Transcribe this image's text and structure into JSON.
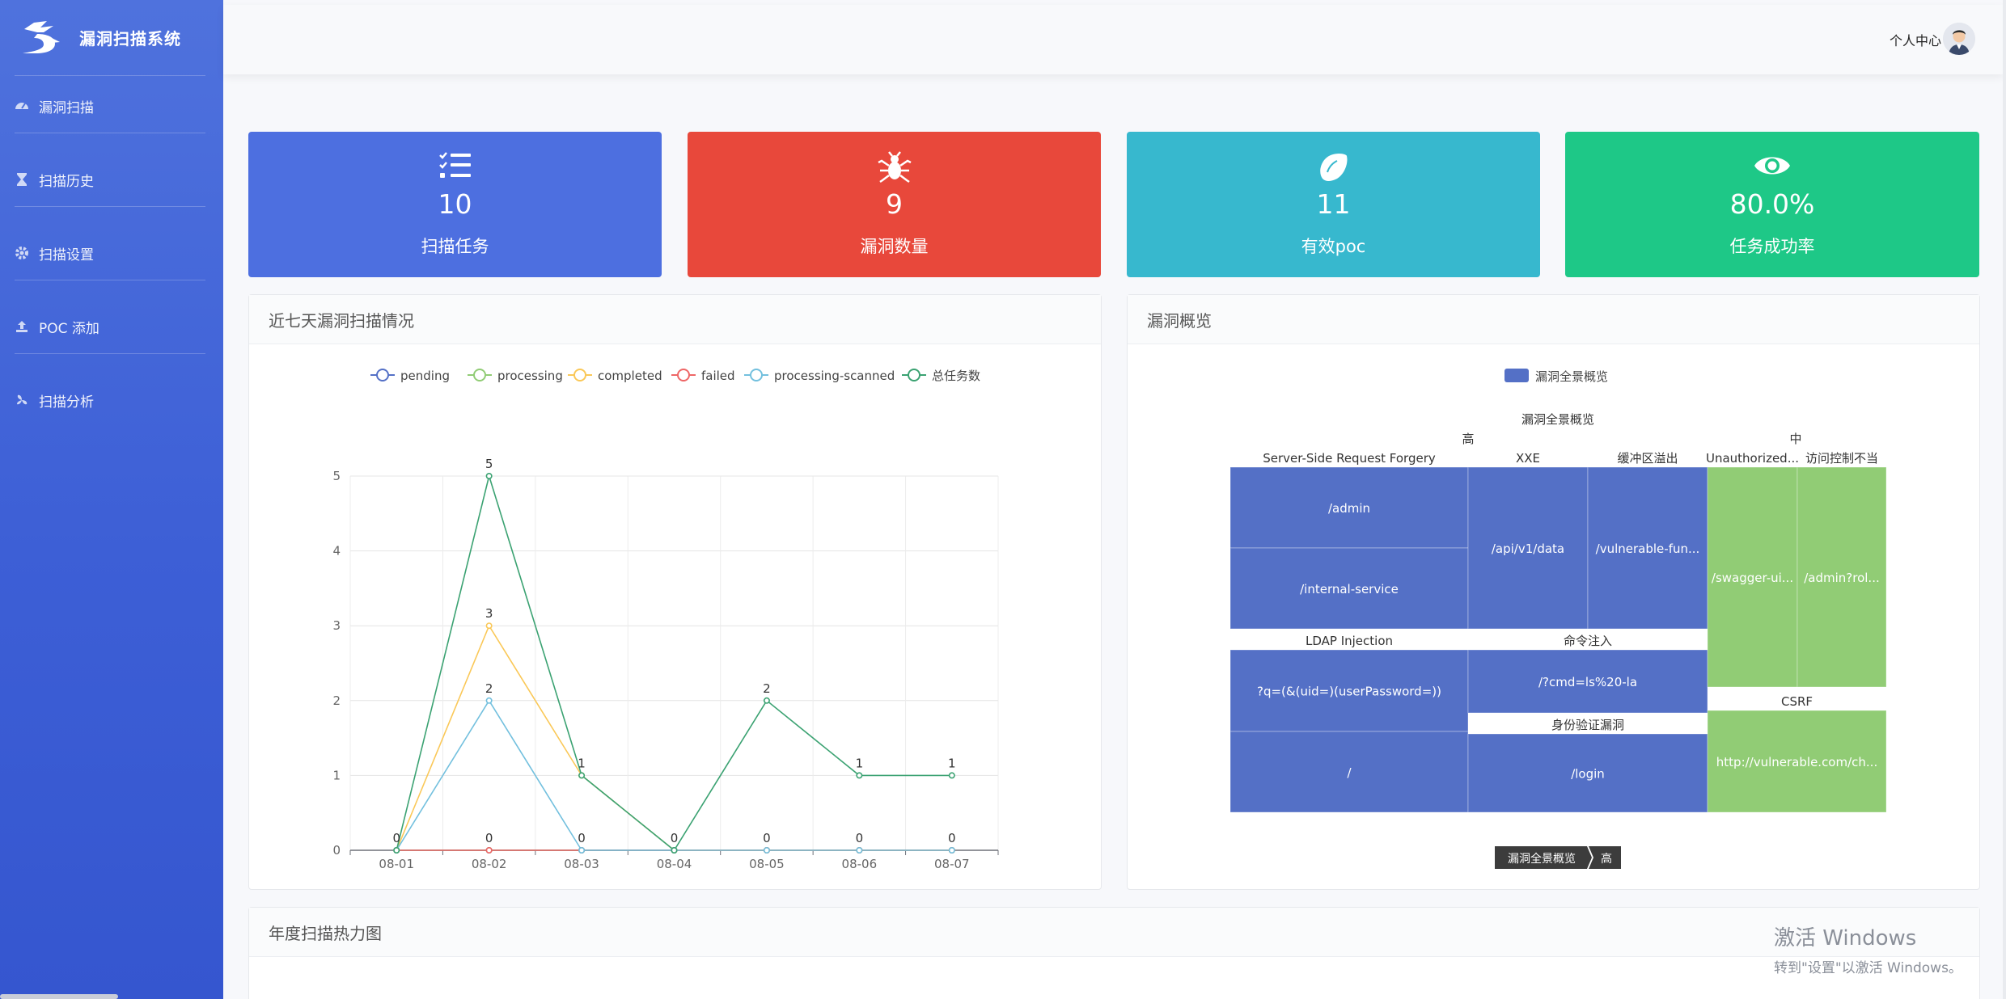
{
  "app": {
    "title": "漏洞扫描系统"
  },
  "sidebar": {
    "items": [
      {
        "label": "漏洞扫描",
        "icon": "dashboard-icon"
      },
      {
        "label": "扫描历史",
        "icon": "hourglass-icon"
      },
      {
        "label": "扫描设置",
        "icon": "gear-icon"
      },
      {
        "label": "POC 添加",
        "icon": "upload-icon"
      },
      {
        "label": "扫描分析",
        "icon": "fan-icon"
      }
    ]
  },
  "header": {
    "user_center": "个人中心"
  },
  "stats": [
    {
      "value": "10",
      "label": "扫描任务",
      "icon": "task-list-icon",
      "color": "#4d6fe0"
    },
    {
      "value": "9",
      "label": "漏洞数量",
      "icon": "bug-icon",
      "color": "#e8483b"
    },
    {
      "value": "11",
      "label": "有效poc",
      "icon": "lemon-icon",
      "color": "#37b8ce"
    },
    {
      "value": "80.0%",
      "label": "任务成功率",
      "icon": "eye-icon",
      "color": "#1ec887"
    }
  ],
  "line_panel": {
    "title": "近七天漏洞扫描情况"
  },
  "treemap_panel": {
    "title": "漏洞概览"
  },
  "heatmap_panel": {
    "title": "年度扫描热力图"
  },
  "chart_data": [
    {
      "type": "line",
      "x": [
        "08-01",
        "08-02",
        "08-03",
        "08-04",
        "08-05",
        "08-06",
        "08-07"
      ],
      "ylim": [
        0,
        5
      ],
      "yticks": [
        "0",
        "1",
        "2",
        "3",
        "4",
        "5"
      ],
      "grid": true,
      "legend_position": "top",
      "series": [
        {
          "name": "pending",
          "color": "#5470c6",
          "values": [
            0,
            0,
            0,
            0,
            0,
            0,
            0
          ]
        },
        {
          "name": "processing",
          "color": "#91cc75",
          "values": [
            0,
            0,
            0,
            0,
            0,
            0,
            0
          ]
        },
        {
          "name": "completed",
          "color": "#fac858",
          "values": [
            0,
            3,
            1,
            0,
            0,
            0,
            0
          ]
        },
        {
          "name": "failed",
          "color": "#ee6666",
          "values": [
            0,
            0,
            0,
            0,
            0,
            0,
            0
          ]
        },
        {
          "name": "processing-scanned",
          "color": "#73c0de",
          "values": [
            0,
            2,
            0,
            0,
            0,
            0,
            0
          ]
        },
        {
          "name": "总任务数",
          "color": "#3ba272",
          "values": [
            0,
            5,
            1,
            0,
            2,
            1,
            1
          ]
        }
      ],
      "data_labels": [
        {
          "x": "08-01",
          "text": "0",
          "value": 0
        },
        {
          "x": "08-02",
          "text": "5",
          "value": 5
        },
        {
          "x": "08-02",
          "text": "3",
          "value": 3
        },
        {
          "x": "08-02",
          "text": "2",
          "value": 2
        },
        {
          "x": "08-02",
          "text": "0",
          "value": 0
        },
        {
          "x": "08-03",
          "text": "1",
          "value": 1
        },
        {
          "x": "08-03",
          "text": "0",
          "value": 0
        },
        {
          "x": "08-04",
          "text": "0",
          "value": 0
        },
        {
          "x": "08-05",
          "text": "2",
          "value": 2
        },
        {
          "x": "08-05",
          "text": "0",
          "value": 0
        },
        {
          "x": "08-06",
          "text": "1",
          "value": 1
        },
        {
          "x": "08-06",
          "text": "0",
          "value": 0
        },
        {
          "x": "08-07",
          "text": "1",
          "value": 1
        },
        {
          "x": "08-07",
          "text": "0",
          "value": 0
        }
      ]
    },
    {
      "type": "treemap",
      "legend": "漏洞全景概览",
      "root": "漏洞全景概览",
      "breadcrumb": [
        "漏洞全景概览",
        "高"
      ],
      "groups": [
        {
          "name": "高",
          "color": "#5470c6",
          "children": [
            {
              "name": "Server-Side Request Forgery",
              "children": [
                "/admin",
                "/internal-service"
              ]
            },
            {
              "name": "XXE",
              "children": [
                "/api/v1/data"
              ]
            },
            {
              "name": "缓冲区溢出",
              "children": [
                "/vulnerable-fun..."
              ]
            },
            {
              "name": "LDAP Injection",
              "children": [
                "?q=(&(uid=)(userPassword=))",
                "/"
              ]
            },
            {
              "name": "命令注入",
              "children": [
                "/?cmd=ls%20-la"
              ]
            },
            {
              "name": "身份验证漏洞",
              "children": [
                "/login"
              ]
            }
          ]
        },
        {
          "name": "中",
          "color": "#91cc75",
          "children": [
            {
              "name": "Unauthorized...",
              "children": [
                "/swagger-ui..."
              ]
            },
            {
              "name": "访问控制不当",
              "children": [
                "/admin?rol..."
              ]
            },
            {
              "name": "CSRF",
              "children": [
                "http://vulnerable.com/ch..."
              ]
            }
          ]
        }
      ]
    }
  ],
  "watermark": {
    "line1": "激活 Windows",
    "line2": "转到\"设置\"以激活 Windows。"
  }
}
